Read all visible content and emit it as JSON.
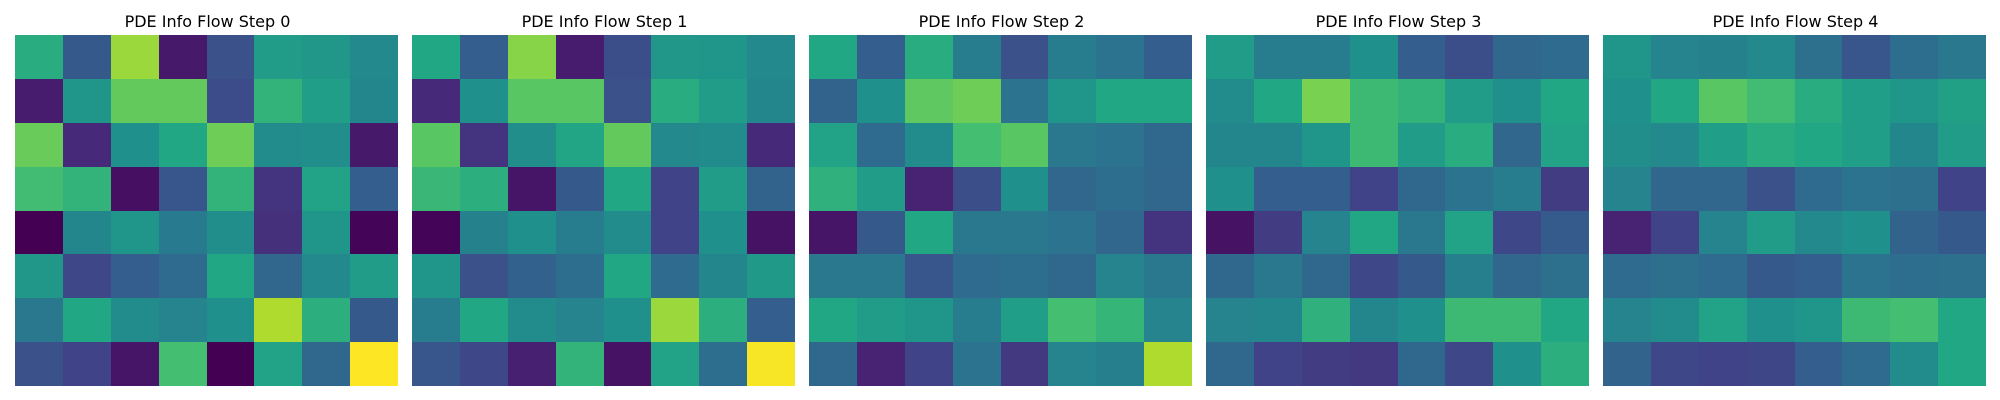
{
  "chart_data": [
    {
      "type": "heatmap",
      "title": "PDE Info Flow Step 0",
      "colormap": "viridis",
      "vmin": 0,
      "vmax": 1,
      "matrix": [
        [
          0.62,
          0.28,
          0.85,
          0.07,
          0.25,
          0.55,
          0.53,
          0.47
        ],
        [
          0.08,
          0.52,
          0.76,
          0.76,
          0.23,
          0.65,
          0.56,
          0.46
        ],
        [
          0.77,
          0.12,
          0.5,
          0.6,
          0.78,
          0.48,
          0.49,
          0.07
        ],
        [
          0.69,
          0.65,
          0.04,
          0.27,
          0.65,
          0.15,
          0.58,
          0.3
        ],
        [
          0.0,
          0.46,
          0.52,
          0.41,
          0.49,
          0.14,
          0.52,
          0.01
        ],
        [
          0.53,
          0.22,
          0.3,
          0.35,
          0.6,
          0.33,
          0.47,
          0.55
        ],
        [
          0.4,
          0.6,
          0.48,
          0.45,
          0.5,
          0.88,
          0.63,
          0.28
        ],
        [
          0.25,
          0.2,
          0.06,
          0.7,
          0.0,
          0.58,
          0.34,
          1.0
        ]
      ]
    },
    {
      "type": "heatmap",
      "title": "PDE Info Flow Step 1",
      "colormap": "viridis",
      "vmin": 0,
      "vmax": 1,
      "matrix": [
        [
          0.6,
          0.3,
          0.82,
          0.08,
          0.24,
          0.53,
          0.52,
          0.47
        ],
        [
          0.12,
          0.5,
          0.74,
          0.74,
          0.25,
          0.62,
          0.55,
          0.46
        ],
        [
          0.74,
          0.15,
          0.49,
          0.59,
          0.76,
          0.47,
          0.48,
          0.12
        ],
        [
          0.67,
          0.63,
          0.06,
          0.28,
          0.6,
          0.2,
          0.55,
          0.32
        ],
        [
          0.01,
          0.44,
          0.5,
          0.42,
          0.48,
          0.2,
          0.5,
          0.05
        ],
        [
          0.52,
          0.25,
          0.31,
          0.36,
          0.6,
          0.35,
          0.46,
          0.54
        ],
        [
          0.42,
          0.6,
          0.48,
          0.45,
          0.5,
          0.85,
          0.63,
          0.3
        ],
        [
          0.27,
          0.22,
          0.09,
          0.65,
          0.05,
          0.58,
          0.36,
          0.99
        ]
      ]
    },
    {
      "type": "heatmap",
      "title": "PDE Info Flow Step 2",
      "colormap": "viridis",
      "vmin": 0,
      "vmax": 1,
      "matrix": [
        [
          0.6,
          0.3,
          0.62,
          0.42,
          0.25,
          0.42,
          0.38,
          0.3
        ],
        [
          0.32,
          0.5,
          0.75,
          0.78,
          0.38,
          0.52,
          0.6,
          0.6
        ],
        [
          0.58,
          0.35,
          0.48,
          0.7,
          0.74,
          0.4,
          0.38,
          0.34
        ],
        [
          0.64,
          0.55,
          0.1,
          0.24,
          0.5,
          0.33,
          0.36,
          0.33
        ],
        [
          0.06,
          0.28,
          0.6,
          0.4,
          0.4,
          0.38,
          0.33,
          0.15
        ],
        [
          0.4,
          0.4,
          0.27,
          0.35,
          0.36,
          0.34,
          0.45,
          0.4
        ],
        [
          0.6,
          0.55,
          0.52,
          0.42,
          0.56,
          0.7,
          0.66,
          0.45
        ],
        [
          0.34,
          0.1,
          0.2,
          0.38,
          0.17,
          0.45,
          0.43,
          0.88
        ]
      ]
    },
    {
      "type": "heatmap",
      "title": "PDE Info Flow Step 3",
      "colormap": "viridis",
      "vmin": 0,
      "vmax": 1,
      "matrix": [
        [
          0.55,
          0.42,
          0.42,
          0.5,
          0.3,
          0.24,
          0.33,
          0.35
        ],
        [
          0.48,
          0.6,
          0.8,
          0.68,
          0.65,
          0.55,
          0.5,
          0.6
        ],
        [
          0.46,
          0.46,
          0.52,
          0.68,
          0.55,
          0.62,
          0.33,
          0.58
        ],
        [
          0.5,
          0.3,
          0.3,
          0.2,
          0.34,
          0.38,
          0.42,
          0.18
        ],
        [
          0.05,
          0.18,
          0.45,
          0.6,
          0.4,
          0.58,
          0.22,
          0.29
        ],
        [
          0.34,
          0.4,
          0.34,
          0.22,
          0.28,
          0.43,
          0.33,
          0.37
        ],
        [
          0.45,
          0.46,
          0.64,
          0.46,
          0.5,
          0.68,
          0.68,
          0.6
        ],
        [
          0.34,
          0.2,
          0.18,
          0.17,
          0.34,
          0.22,
          0.5,
          0.63
        ]
      ]
    },
    {
      "type": "heatmap",
      "title": "PDE Info Flow Step 4",
      "colormap": "viridis",
      "vmin": 0,
      "vmax": 1,
      "matrix": [
        [
          0.52,
          0.45,
          0.44,
          0.47,
          0.37,
          0.27,
          0.36,
          0.4
        ],
        [
          0.5,
          0.6,
          0.74,
          0.69,
          0.62,
          0.56,
          0.52,
          0.57
        ],
        [
          0.49,
          0.47,
          0.56,
          0.62,
          0.6,
          0.56,
          0.46,
          0.55
        ],
        [
          0.45,
          0.33,
          0.33,
          0.25,
          0.35,
          0.38,
          0.37,
          0.2
        ],
        [
          0.1,
          0.2,
          0.45,
          0.55,
          0.47,
          0.5,
          0.32,
          0.28
        ],
        [
          0.35,
          0.37,
          0.35,
          0.28,
          0.3,
          0.38,
          0.36,
          0.37
        ],
        [
          0.45,
          0.48,
          0.58,
          0.5,
          0.52,
          0.68,
          0.7,
          0.6
        ],
        [
          0.32,
          0.22,
          0.2,
          0.21,
          0.3,
          0.35,
          0.48,
          0.6
        ]
      ]
    }
  ]
}
